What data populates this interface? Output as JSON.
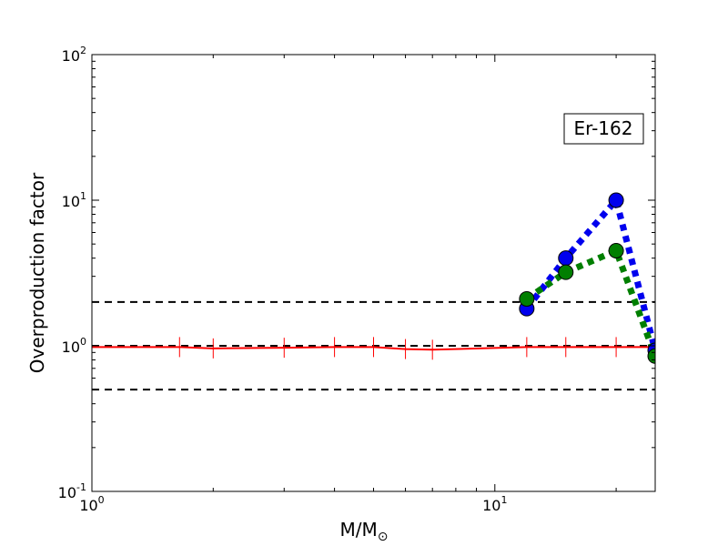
{
  "chart_data": {
    "type": "line",
    "xlabel": "M/M",
    "xlabel_sub": "⊙",
    "ylabel": "Overproduction factor",
    "x_scale": "log",
    "y_scale": "log",
    "xlim": [
      1,
      25
    ],
    "ylim": [
      0.1,
      100
    ],
    "x_ticks": [
      {
        "value": 1,
        "base": "10",
        "exp": "0"
      },
      {
        "value": 10,
        "base": "10",
        "exp": "1"
      }
    ],
    "y_ticks": [
      {
        "value": 0.1,
        "base": "10",
        "exp": "-1"
      },
      {
        "value": 1,
        "base": "10",
        "exp": "0"
      },
      {
        "value": 10,
        "base": "10",
        "exp": "1"
      },
      {
        "value": 100,
        "base": "10",
        "exp": "2"
      }
    ],
    "annotation": "Er-162",
    "reference_lines": [
      {
        "y": 2.0,
        "color": "#000000",
        "style": "dashed"
      },
      {
        "y": 1.0,
        "color": "#000000",
        "style": "dashed"
      },
      {
        "y": 0.5,
        "color": "#000000",
        "style": "dashed"
      }
    ],
    "series": [
      {
        "color": "#ff0000",
        "style": "solid",
        "marker": "vertical-tick",
        "x": [
          1.0,
          1.65,
          2.0,
          3.0,
          4.0,
          5.0,
          6.0,
          7.0,
          12.0,
          15.0,
          20.0,
          25.0
        ],
        "y": [
          0.98,
          0.98,
          0.96,
          0.97,
          0.98,
          0.98,
          0.95,
          0.94,
          0.98,
          0.98,
          0.98,
          0.98
        ]
      },
      {
        "color": "#0000ee",
        "style": "dotted",
        "marker": "circle",
        "x": [
          12.0,
          15.0,
          20.0,
          25.0
        ],
        "y": [
          1.8,
          4.0,
          10.0,
          0.93
        ]
      },
      {
        "color": "#007f00",
        "style": "dotted",
        "marker": "circle",
        "x": [
          12.0,
          15.0,
          20.0,
          25.0
        ],
        "y": [
          2.1,
          3.2,
          4.5,
          0.85
        ]
      }
    ],
    "grid": false
  }
}
